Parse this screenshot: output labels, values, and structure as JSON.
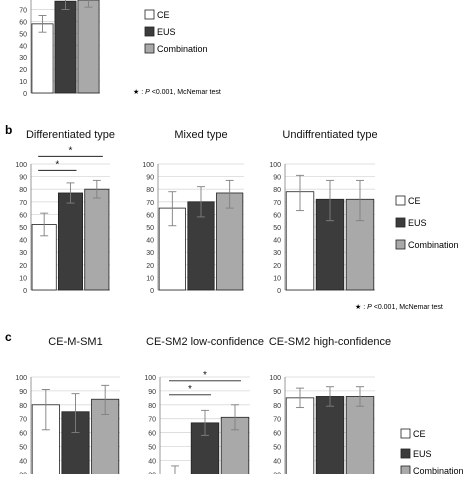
{
  "colors": {
    "CE": "#ffffff",
    "EUS": "#3c3c3c",
    "Combination": "#a9a9a9",
    "axis": "#7f7f7f",
    "grid": "#d9d9d9"
  },
  "legend": {
    "CE": "CE",
    "EUS": "EUS",
    "Combination": "Combination"
  },
  "panel_a": {
    "footnote_star": "★ : ",
    "footnote_p": "P",
    "footnote_rest": " <0.001, McNemar test"
  },
  "panel_b": {
    "label": "b",
    "footnote_star": "★ : ",
    "footnote_p": "P",
    "footnote_rest": " <0.001, McNemar test"
  },
  "panel_c": {
    "label": "c"
  },
  "chart_data": [
    {
      "type": "bar",
      "panel": "a",
      "title": "",
      "yticks": [
        "0",
        "10",
        "20",
        "30",
        "40",
        "50",
        "60",
        "70"
      ],
      "ylim": [
        0,
        78
      ],
      "categories": [
        "CE",
        "EUS",
        "Combination"
      ],
      "values": [
        58,
        77,
        78
      ],
      "error_low": [
        51,
        70,
        72
      ],
      "error_high": [
        65,
        82,
        82
      ],
      "significance": []
    },
    {
      "type": "bar",
      "panel": "b",
      "title": "Differentiated type",
      "yticks": [
        "0",
        "10",
        "20",
        "30",
        "40",
        "50",
        "60",
        "70",
        "80",
        "90",
        "100"
      ],
      "ylim": [
        0,
        100
      ],
      "categories": [
        "CE",
        "EUS",
        "Combination"
      ],
      "values": [
        52,
        77,
        80
      ],
      "error_low": [
        43,
        69,
        73
      ],
      "error_high": [
        61,
        85,
        87
      ],
      "significance": [
        [
          "CE",
          "EUS"
        ],
        [
          "CE",
          "Combination"
        ]
      ]
    },
    {
      "type": "bar",
      "panel": "b",
      "title": "Mixed type",
      "yticks": [
        "0",
        "10",
        "20",
        "30",
        "40",
        "50",
        "60",
        "70",
        "80",
        "90",
        "100"
      ],
      "ylim": [
        0,
        100
      ],
      "categories": [
        "CE",
        "EUS",
        "Combination"
      ],
      "values": [
        65,
        70,
        77
      ],
      "error_low": [
        51,
        58,
        65
      ],
      "error_high": [
        78,
        82,
        87
      ],
      "significance": []
    },
    {
      "type": "bar",
      "panel": "b",
      "title": "Undiffrentiated type",
      "yticks": [
        "0",
        "10",
        "20",
        "30",
        "40",
        "50",
        "60",
        "70",
        "80",
        "90",
        "100"
      ],
      "ylim": [
        0,
        100
      ],
      "categories": [
        "CE",
        "EUS",
        "Combination"
      ],
      "values": [
        78,
        72,
        72
      ],
      "error_low": [
        63,
        55,
        55
      ],
      "error_high": [
        91,
        87,
        87
      ],
      "significance": []
    },
    {
      "type": "bar",
      "panel": "c",
      "title": "CE-M-SM1",
      "yticks": [
        "30",
        "40",
        "50",
        "60",
        "70",
        "80",
        "90",
        "100"
      ],
      "ylim": [
        23,
        100
      ],
      "categories": [
        "CE",
        "EUS",
        "Combination"
      ],
      "values": [
        80,
        75,
        84
      ],
      "error_low": [
        62,
        60,
        73
      ],
      "error_high": [
        91,
        88,
        94
      ],
      "significance": []
    },
    {
      "type": "bar",
      "panel": "c",
      "title": "CE-SM2 low-confidence",
      "yticks": [
        "30",
        "40",
        "50",
        "60",
        "70",
        "80",
        "90",
        "100"
      ],
      "ylim": [
        23,
        100
      ],
      "categories": [
        "CE",
        "EUS",
        "Combination"
      ],
      "values": [
        29,
        67,
        71
      ],
      "error_low": [
        22,
        58,
        62
      ],
      "error_high": [
        36,
        76,
        80
      ],
      "significance": [
        [
          "CE",
          "EUS"
        ],
        [
          "CE",
          "Combination"
        ]
      ]
    },
    {
      "type": "bar",
      "panel": "c",
      "title": "CE-SM2 high-confidence",
      "yticks": [
        "30",
        "40",
        "50",
        "60",
        "70",
        "80",
        "90",
        "100"
      ],
      "ylim": [
        23,
        100
      ],
      "categories": [
        "CE",
        "EUS",
        "Combination"
      ],
      "values": [
        85,
        86,
        86
      ],
      "error_low": [
        78,
        79,
        79
      ],
      "error_high": [
        92,
        93,
        93
      ],
      "significance": []
    }
  ]
}
